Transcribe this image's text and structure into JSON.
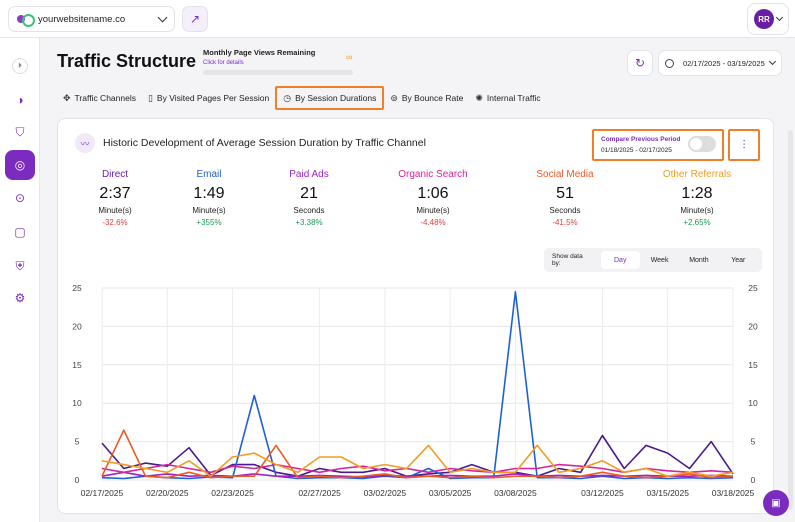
{
  "topbar": {
    "site_name": "yourwebsitename.co",
    "user_initials": "RR"
  },
  "header": {
    "title": "Traffic Structure",
    "quota_label": "Monthly Page Views Remaining",
    "quota_link": "Click for details",
    "quota_value": "∞",
    "date_range": "02/17/2025 - 03/19/2025"
  },
  "tabs": [
    {
      "label": "Traffic Channels",
      "icon": "network-icon"
    },
    {
      "label": "By Visited Pages Per Session",
      "icon": "pages-icon"
    },
    {
      "label": "By Session Durations",
      "icon": "stopwatch-icon"
    },
    {
      "label": "By Bounce Rate",
      "icon": "bounce-icon"
    },
    {
      "label": "Internal Traffic",
      "icon": "internal-icon"
    }
  ],
  "card": {
    "title": "Historic Development of Average Session Duration by Traffic Channel",
    "compare_label": "Compare Previous Period",
    "compare_range": "01/18/2025 - 02/17/2025",
    "compare_enabled": false,
    "period_label": "Show data by:",
    "period_options": [
      "Day",
      "Week",
      "Month",
      "Year"
    ],
    "period_selected": "Day"
  },
  "stats": [
    {
      "name": "Direct",
      "value": "2:37",
      "unit": "Minute(s)",
      "delta": "-32.6%",
      "color": "#6a1fb0",
      "delta_color": "#e0413a"
    },
    {
      "name": "Email",
      "value": "1:49",
      "unit": "Minute(s)",
      "delta": "+355%",
      "color": "#1f5fd6",
      "delta_color": "#1a9a55"
    },
    {
      "name": "Paid Ads",
      "value": "21",
      "unit": "Seconds",
      "delta": "+3.38%",
      "color": "#a021c9",
      "delta_color": "#1a9a55"
    },
    {
      "name": "Organic Search",
      "value": "1:06",
      "unit": "Minute(s)",
      "delta": "-4.48%",
      "color": "#d6249f",
      "delta_color": "#e0413a"
    },
    {
      "name": "Social Media",
      "value": "51",
      "unit": "Seconds",
      "delta": "-41.5%",
      "color": "#ee5a24",
      "delta_color": "#e0413a"
    },
    {
      "name": "Other Referrals",
      "value": "1:28",
      "unit": "Minute(s)",
      "delta": "+2.65%",
      "color": "#f39c22",
      "delta_color": "#1a9a55"
    }
  ],
  "chart_data": {
    "type": "line",
    "ylim": [
      0,
      25
    ],
    "yticks": [
      0,
      5,
      10,
      15,
      20,
      25
    ],
    "x": [
      "02/17/2025",
      "02/18/2025",
      "02/19/2025",
      "02/20/2025",
      "02/21/2025",
      "02/22/2025",
      "02/23/2025",
      "02/24/2025",
      "02/25/2025",
      "02/26/2025",
      "02/27/2025",
      "02/28/2025",
      "03/01/2025",
      "03/02/2025",
      "03/03/2025",
      "03/04/2025",
      "03/05/2025",
      "03/06/2025",
      "03/07/2025",
      "03/08/2025",
      "03/09/2025",
      "03/10/2025",
      "03/11/2025",
      "03/12/2025",
      "03/13/2025",
      "03/14/2025",
      "03/15/2025",
      "03/16/2025",
      "03/17/2025",
      "03/18/2025"
    ],
    "xticks": [
      "02/17/2025",
      "02/20/2025",
      "02/23/2025",
      "02/27/2025",
      "03/02/2025",
      "03/05/2025",
      "03/08/2025",
      "03/12/2025",
      "03/15/2025",
      "03/18/2025"
    ],
    "series": [
      {
        "name": "Direct",
        "color": "#4a1a8c",
        "values": [
          4.8,
          1.5,
          2.2,
          1.8,
          4.2,
          0.6,
          2.0,
          2.0,
          1.0,
          0.5,
          1.5,
          1.0,
          1.0,
          1.5,
          0.5,
          0.8,
          1.0,
          2.0,
          1.0,
          1.0,
          0.5,
          1.5,
          1.0,
          5.8,
          1.5,
          4.5,
          3.5,
          1.5,
          5.0,
          0.8
        ]
      },
      {
        "name": "Email",
        "color": "#1f5fd6",
        "values": [
          0.3,
          0.2,
          0.5,
          0.3,
          0.2,
          0.4,
          0.3,
          11.0,
          0.5,
          0.2,
          0.3,
          0.3,
          0.2,
          0.5,
          0.3,
          1.5,
          0.2,
          0.3,
          0.3,
          24.5,
          0.3,
          0.3,
          0.2,
          0.5,
          0.2,
          0.3,
          0.2,
          0.3,
          0.2,
          0.3
        ]
      },
      {
        "name": "Paid Ads",
        "color": "#a021c9",
        "values": [
          0.5,
          1.0,
          0.5,
          0.8,
          0.5,
          0.6,
          0.5,
          0.8,
          0.5,
          0.5,
          0.6,
          0.5,
          0.4,
          0.6,
          0.5,
          0.5,
          0.6,
          0.5,
          0.5,
          0.8,
          0.5,
          0.6,
          0.5,
          0.6,
          0.5,
          0.6,
          0.5,
          0.5,
          0.6,
          0.5
        ]
      },
      {
        "name": "Organic Search",
        "color": "#d6249f",
        "values": [
          1.5,
          1.0,
          1.5,
          2.0,
          1.5,
          1.0,
          1.8,
          1.5,
          2.0,
          1.5,
          1.0,
          1.5,
          1.8,
          1.2,
          1.5,
          1.0,
          1.5,
          1.2,
          1.0,
          1.5,
          1.5,
          2.0,
          1.8,
          1.5,
          1.0,
          1.5,
          1.2,
          1.0,
          1.2,
          1.0
        ]
      },
      {
        "name": "Social Media",
        "color": "#ee5a24",
        "values": [
          0.5,
          6.5,
          0.5,
          0.3,
          1.0,
          0.3,
          0.5,
          0.5,
          4.5,
          0.3,
          0.5,
          0.3,
          0.5,
          0.8,
          0.3,
          0.5,
          0.3,
          0.5,
          0.3,
          0.5,
          0.5,
          0.3,
          0.5,
          1.0,
          0.5,
          0.3,
          0.5,
          0.8,
          0.3,
          0.5
        ]
      },
      {
        "name": "Other Referrals",
        "color": "#f39c22",
        "values": [
          2.5,
          2.0,
          1.5,
          1.0,
          2.5,
          0.5,
          3.0,
          3.5,
          2.0,
          1.0,
          3.0,
          3.0,
          1.5,
          2.0,
          1.5,
          4.5,
          1.0,
          1.5,
          1.0,
          1.0,
          4.5,
          1.0,
          1.5,
          2.5,
          1.0,
          1.5,
          0.5,
          1.0,
          0.5,
          1.0
        ]
      }
    ]
  }
}
